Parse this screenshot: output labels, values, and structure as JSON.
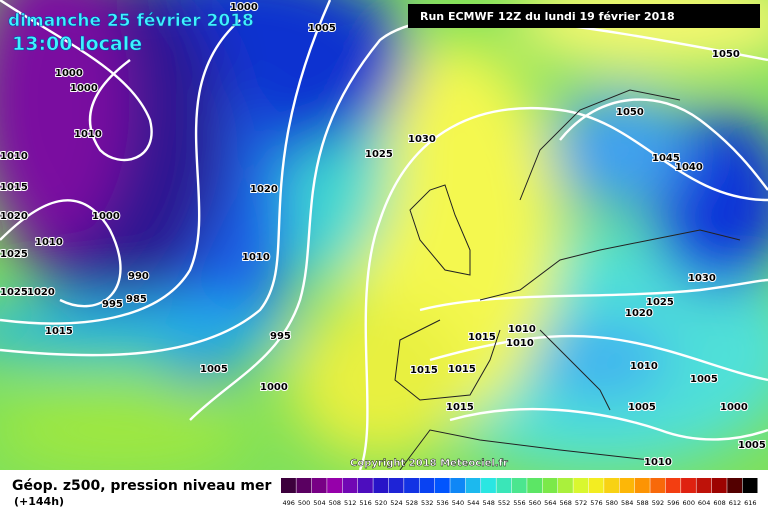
{
  "header": {
    "date": "dimanche 25 février 2018",
    "time": "13:00 locale",
    "run": "Run ECMWF 12Z du lundi 19 février 2018"
  },
  "isobar_labels": [
    1000,
    1005,
    1000,
    1000,
    1010,
    1010,
    1015,
    1020,
    1000,
    1010,
    1025,
    990,
    985,
    995,
    1025,
    1020,
    1015,
    1020,
    1010,
    995,
    1005,
    1000,
    1030,
    1025,
    1050,
    1050,
    1045,
    1040,
    1030,
    1025,
    1020,
    1015,
    1010,
    1010,
    1015,
    1015,
    1010,
    1005,
    1005,
    1000,
    1015,
    1010,
    1005
  ],
  "copyright": "Copyright 2018 Meteociel.fr",
  "footer": {
    "title": "Géop. z500, pression niveau mer",
    "lead": "(+144h)"
  },
  "scale": [
    496,
    500,
    504,
    508,
    512,
    516,
    520,
    524,
    528,
    532,
    536,
    540,
    544,
    548,
    552,
    556,
    560,
    564,
    568,
    572,
    576,
    580,
    584,
    588,
    592,
    596,
    600,
    604,
    608,
    612,
    616
  ]
}
